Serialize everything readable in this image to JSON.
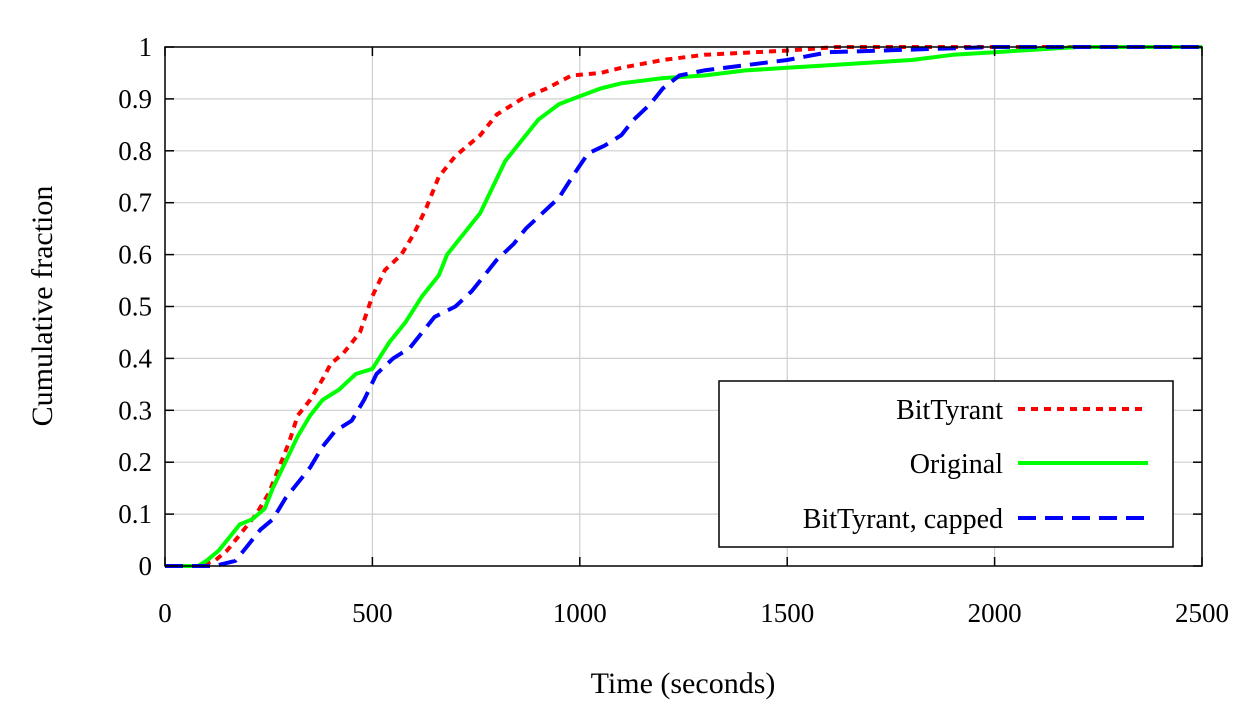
{
  "chart_data": {
    "type": "line",
    "xlabel": "Time (seconds)",
    "ylabel": "Cumulative fraction",
    "xlim": [
      0,
      2500
    ],
    "ylim": [
      0,
      1
    ],
    "xticks": [
      0,
      500,
      1000,
      1500,
      2000,
      2500
    ],
    "yticks": [
      0,
      0.1,
      0.2,
      0.3,
      0.4,
      0.5,
      0.6,
      0.7,
      0.8,
      0.9,
      1
    ],
    "xtick_labels": [
      "0",
      "500",
      "1000",
      "1500",
      "2000",
      "2500"
    ],
    "ytick_labels": [
      "0",
      "0.1",
      "0.2",
      "0.3",
      "0.4",
      "0.5",
      "0.6",
      "0.7",
      "0.8",
      "0.9",
      "1"
    ],
    "grid": true,
    "legend_position": "bottom-right",
    "series": [
      {
        "name": "BitTyrant",
        "color": "#ff0000",
        "dash": "dotted",
        "points": [
          [
            0,
            0
          ],
          [
            80,
            0
          ],
          [
            120,
            0.01
          ],
          [
            150,
            0.03
          ],
          [
            180,
            0.06
          ],
          [
            220,
            0.1
          ],
          [
            250,
            0.14
          ],
          [
            270,
            0.18
          ],
          [
            300,
            0.24
          ],
          [
            320,
            0.29
          ],
          [
            350,
            0.32
          ],
          [
            380,
            0.36
          ],
          [
            400,
            0.39
          ],
          [
            430,
            0.41
          ],
          [
            470,
            0.45
          ],
          [
            500,
            0.52
          ],
          [
            530,
            0.57
          ],
          [
            570,
            0.6
          ],
          [
            600,
            0.64
          ],
          [
            630,
            0.69
          ],
          [
            660,
            0.75
          ],
          [
            700,
            0.79
          ],
          [
            760,
            0.83
          ],
          [
            800,
            0.87
          ],
          [
            860,
            0.9
          ],
          [
            920,
            0.92
          ],
          [
            980,
            0.945
          ],
          [
            1050,
            0.95
          ],
          [
            1100,
            0.96
          ],
          [
            1200,
            0.975
          ],
          [
            1300,
            0.985
          ],
          [
            1500,
            0.993
          ],
          [
            1620,
            1
          ],
          [
            2500,
            1
          ]
        ]
      },
      {
        "name": "Original",
        "color": "#00ff00",
        "dash": "solid",
        "points": [
          [
            0,
            0
          ],
          [
            80,
            0
          ],
          [
            100,
            0.01
          ],
          [
            130,
            0.03
          ],
          [
            160,
            0.06
          ],
          [
            180,
            0.08
          ],
          [
            210,
            0.09
          ],
          [
            240,
            0.11
          ],
          [
            260,
            0.15
          ],
          [
            290,
            0.2
          ],
          [
            320,
            0.25
          ],
          [
            350,
            0.29
          ],
          [
            380,
            0.32
          ],
          [
            420,
            0.34
          ],
          [
            460,
            0.37
          ],
          [
            500,
            0.38
          ],
          [
            540,
            0.43
          ],
          [
            580,
            0.47
          ],
          [
            620,
            0.52
          ],
          [
            660,
            0.56
          ],
          [
            680,
            0.6
          ],
          [
            720,
            0.64
          ],
          [
            760,
            0.68
          ],
          [
            790,
            0.73
          ],
          [
            820,
            0.78
          ],
          [
            860,
            0.82
          ],
          [
            900,
            0.86
          ],
          [
            950,
            0.89
          ],
          [
            1000,
            0.905
          ],
          [
            1050,
            0.92
          ],
          [
            1100,
            0.93
          ],
          [
            1200,
            0.94
          ],
          [
            1300,
            0.945
          ],
          [
            1400,
            0.955
          ],
          [
            1500,
            0.96
          ],
          [
            1600,
            0.965
          ],
          [
            1700,
            0.97
          ],
          [
            1800,
            0.975
          ],
          [
            1900,
            0.985
          ],
          [
            2000,
            0.99
          ],
          [
            2200,
            1
          ],
          [
            2500,
            1
          ]
        ]
      },
      {
        "name": "BitTyrant, capped",
        "color": "#0000ff",
        "dash": "dashed",
        "points": [
          [
            0,
            0
          ],
          [
            120,
            0
          ],
          [
            170,
            0.01
          ],
          [
            200,
            0.04
          ],
          [
            230,
            0.07
          ],
          [
            260,
            0.09
          ],
          [
            290,
            0.13
          ],
          [
            320,
            0.16
          ],
          [
            350,
            0.19
          ],
          [
            380,
            0.23
          ],
          [
            410,
            0.26
          ],
          [
            450,
            0.28
          ],
          [
            480,
            0.32
          ],
          [
            510,
            0.37
          ],
          [
            550,
            0.4
          ],
          [
            590,
            0.42
          ],
          [
            620,
            0.45
          ],
          [
            650,
            0.48
          ],
          [
            700,
            0.5
          ],
          [
            740,
            0.53
          ],
          [
            770,
            0.56
          ],
          [
            800,
            0.59
          ],
          [
            840,
            0.62
          ],
          [
            870,
            0.65
          ],
          [
            910,
            0.68
          ],
          [
            950,
            0.71
          ],
          [
            990,
            0.76
          ],
          [
            1020,
            0.795
          ],
          [
            1060,
            0.81
          ],
          [
            1100,
            0.83
          ],
          [
            1130,
            0.86
          ],
          [
            1170,
            0.89
          ],
          [
            1200,
            0.92
          ],
          [
            1240,
            0.945
          ],
          [
            1300,
            0.955
          ],
          [
            1400,
            0.965
          ],
          [
            1500,
            0.975
          ],
          [
            1600,
            0.99
          ],
          [
            1800,
            0.995
          ],
          [
            2000,
            1
          ],
          [
            2500,
            1
          ]
        ]
      }
    ]
  }
}
